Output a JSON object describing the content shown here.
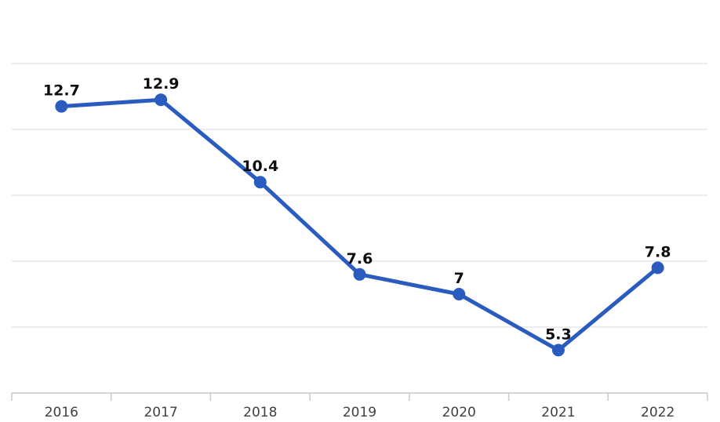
{
  "chart_data": {
    "type": "line",
    "title": "",
    "xlabel": "",
    "ylabel": "",
    "categories": [
      "2016",
      "2017",
      "2018",
      "2019",
      "2020",
      "2021",
      "2022"
    ],
    "series": [
      {
        "name": "value",
        "values": [
          12.7,
          12.9,
          10.4,
          7.6,
          7,
          5.3,
          7.8
        ],
        "point_labels": [
          "12.7",
          "12.9",
          "10.4",
          "7.6",
          "7",
          "5.3",
          "7.8"
        ],
        "color": "#2a5cbf"
      }
    ],
    "ylim": [
      4,
      15.8
    ],
    "y_gridline_values": [
      6,
      8,
      10,
      12,
      14
    ],
    "y_axis_tick_labels_visible": false,
    "legend": "none",
    "grid": "horizontal",
    "marker": "circle",
    "colors": {
      "line": "#2a5cbf",
      "marker": "#2a5cbf",
      "gridline": "#e5e5e5",
      "axis": "#c9c9c9",
      "point_label": "#0d0d0d",
      "x_tick_label": "#404040",
      "background": "#ffffff"
    }
  }
}
